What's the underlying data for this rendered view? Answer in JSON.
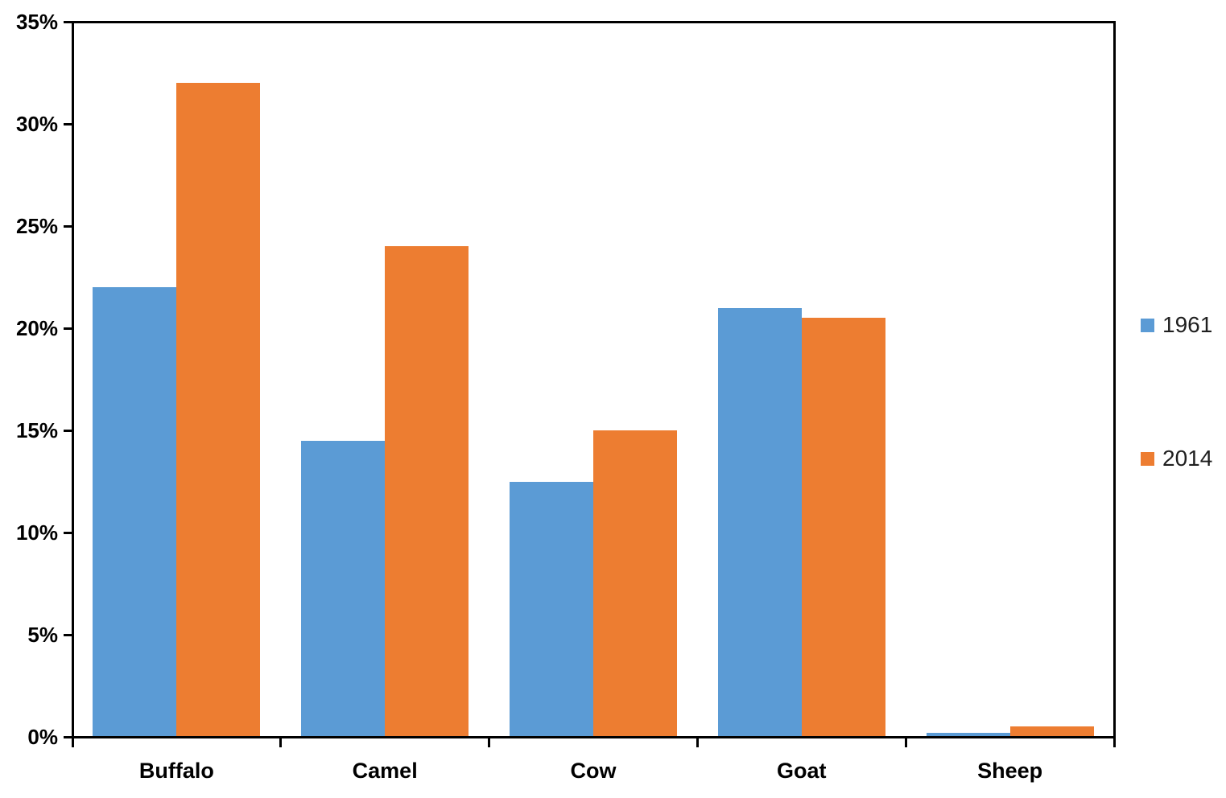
{
  "chart_data": {
    "type": "bar",
    "title": "",
    "categories": [
      "Buffalo",
      "Camel",
      "Cow",
      "Goat",
      "Sheep"
    ],
    "series": [
      {
        "name": "1961",
        "color": "#5B9BD5",
        "values": [
          22,
          14.5,
          12.5,
          21,
          0.2
        ]
      },
      {
        "name": "2014",
        "color": "#ED7D31",
        "values": [
          32,
          24,
          15,
          20.5,
          0.5
        ]
      }
    ],
    "xlabel": "",
    "ylabel": "",
    "ylim": [
      0,
      35
    ],
    "y_tick_step": 5,
    "y_tick_labels": [
      "0%",
      "5%",
      "10%",
      "15%",
      "20%",
      "25%",
      "30%",
      "35%"
    ],
    "grid": false,
    "legend_position": "right",
    "axis_color": "#000000",
    "label_color": "#000000",
    "legend_text_color": "#1f1f1f",
    "background_color": "#ffffff"
  }
}
